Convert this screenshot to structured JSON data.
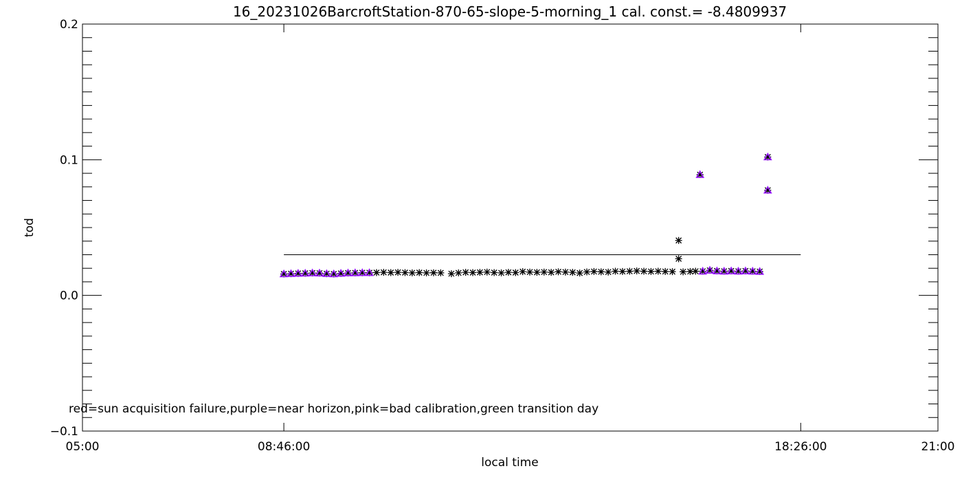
{
  "chart_data": {
    "type": "scatter",
    "title": "16_20231026BarcroftStation-870-65-slope-5-morning_1 cal. const.= -8.4809937",
    "xlabel": "local time",
    "ylabel": "tod",
    "xlim": [
      "05:00",
      "21:00"
    ],
    "ylim": [
      -0.1,
      0.2
    ],
    "xticks": [
      "05:00",
      "08:46:00",
      "18:26:00",
      "21:00"
    ],
    "xtick_values": [
      "05:00",
      "08:46",
      "18:26",
      "21:00"
    ],
    "yticks": [
      "-0.1",
      "0.0",
      "0.1",
      "0.2"
    ],
    "ytick_values": [
      -0.1,
      0.0,
      0.1,
      0.2
    ],
    "grid": false,
    "annotation": "red=sun acquisition failure,purple=near horizon,pink=bad calibration,green transition day",
    "colors": {
      "normal": "#000000",
      "near_horizon": "#9a1aff"
    },
    "reference_line": {
      "y": 0.03,
      "x_start": "08:46",
      "x_end": "18:26"
    },
    "points": [
      [
        "08:46",
        0.0158,
        "near_horizon"
      ],
      [
        "08:54",
        0.016,
        "near_horizon"
      ],
      [
        "09:02",
        0.0162,
        "near_horizon"
      ],
      [
        "09:10",
        0.0163,
        "near_horizon"
      ],
      [
        "09:18",
        0.0165,
        "near_horizon"
      ],
      [
        "09:26",
        0.0164,
        "near_horizon"
      ],
      [
        "09:34",
        0.016,
        "near_horizon"
      ],
      [
        "09:42",
        0.0158,
        "near_horizon"
      ],
      [
        "09:50",
        0.0162,
        "near_horizon"
      ],
      [
        "09:58",
        0.0165,
        "near_horizon"
      ],
      [
        "10:06",
        0.0166,
        "near_horizon"
      ],
      [
        "10:14",
        0.0167,
        "near_horizon"
      ],
      [
        "10:22",
        0.0167,
        "near_horizon"
      ],
      [
        "10:30",
        0.0168,
        "normal"
      ],
      [
        "10:38",
        0.017,
        "normal"
      ],
      [
        "10:46",
        0.0168,
        "normal"
      ],
      [
        "10:54",
        0.017,
        "normal"
      ],
      [
        "11:02",
        0.0168,
        "normal"
      ],
      [
        "11:10",
        0.0166,
        "normal"
      ],
      [
        "11:18",
        0.0168,
        "normal"
      ],
      [
        "11:26",
        0.0166,
        "normal"
      ],
      [
        "11:34",
        0.0167,
        "normal"
      ],
      [
        "11:42",
        0.0166,
        "normal"
      ],
      [
        "11:54",
        0.016,
        "normal"
      ],
      [
        "12:02",
        0.0166,
        "normal"
      ],
      [
        "12:10",
        0.017,
        "normal"
      ],
      [
        "12:18",
        0.0168,
        "normal"
      ],
      [
        "12:26",
        0.017,
        "normal"
      ],
      [
        "12:34",
        0.0172,
        "normal"
      ],
      [
        "12:42",
        0.0168,
        "normal"
      ],
      [
        "12:50",
        0.0166,
        "normal"
      ],
      [
        "12:58",
        0.017,
        "normal"
      ],
      [
        "13:06",
        0.0168,
        "normal"
      ],
      [
        "13:14",
        0.0175,
        "normal"
      ],
      [
        "13:22",
        0.0172,
        "normal"
      ],
      [
        "13:30",
        0.017,
        "normal"
      ],
      [
        "13:38",
        0.0172,
        "normal"
      ],
      [
        "13:46",
        0.017,
        "normal"
      ],
      [
        "13:54",
        0.0174,
        "normal"
      ],
      [
        "14:02",
        0.0172,
        "normal"
      ],
      [
        "14:10",
        0.017,
        "normal"
      ],
      [
        "14:18",
        0.0165,
        "normal"
      ],
      [
        "14:26",
        0.0173,
        "normal"
      ],
      [
        "14:34",
        0.0176,
        "normal"
      ],
      [
        "14:42",
        0.0174,
        "normal"
      ],
      [
        "14:50",
        0.0172,
        "normal"
      ],
      [
        "14:58",
        0.0178,
        "normal"
      ],
      [
        "15:06",
        0.0176,
        "normal"
      ],
      [
        "15:14",
        0.0178,
        "normal"
      ],
      [
        "15:22",
        0.018,
        "normal"
      ],
      [
        "15:30",
        0.0178,
        "normal"
      ],
      [
        "15:38",
        0.0176,
        "normal"
      ],
      [
        "15:46",
        0.0178,
        "normal"
      ],
      [
        "15:54",
        0.0176,
        "normal"
      ],
      [
        "16:02",
        0.0175,
        "normal"
      ],
      [
        "16:09",
        0.0405,
        "normal"
      ],
      [
        "16:09",
        0.027,
        "normal"
      ],
      [
        "16:14",
        0.0174,
        "normal"
      ],
      [
        "16:22",
        0.0176,
        "normal"
      ],
      [
        "16:28",
        0.0178,
        "normal"
      ],
      [
        "16:33",
        0.089,
        "near_horizon"
      ],
      [
        "16:36",
        0.0178,
        "near_horizon"
      ],
      [
        "16:44",
        0.0185,
        "near_horizon"
      ],
      [
        "16:52",
        0.018,
        "near_horizon"
      ],
      [
        "17:00",
        0.0178,
        "near_horizon"
      ],
      [
        "17:08",
        0.018,
        "near_horizon"
      ],
      [
        "17:16",
        0.0178,
        "near_horizon"
      ],
      [
        "17:24",
        0.018,
        "near_horizon"
      ],
      [
        "17:32",
        0.0178,
        "near_horizon"
      ],
      [
        "17:40",
        0.0176,
        "near_horizon"
      ],
      [
        "17:49",
        0.102,
        "near_horizon"
      ],
      [
        "17:49",
        0.0775,
        "near_horizon"
      ]
    ]
  }
}
